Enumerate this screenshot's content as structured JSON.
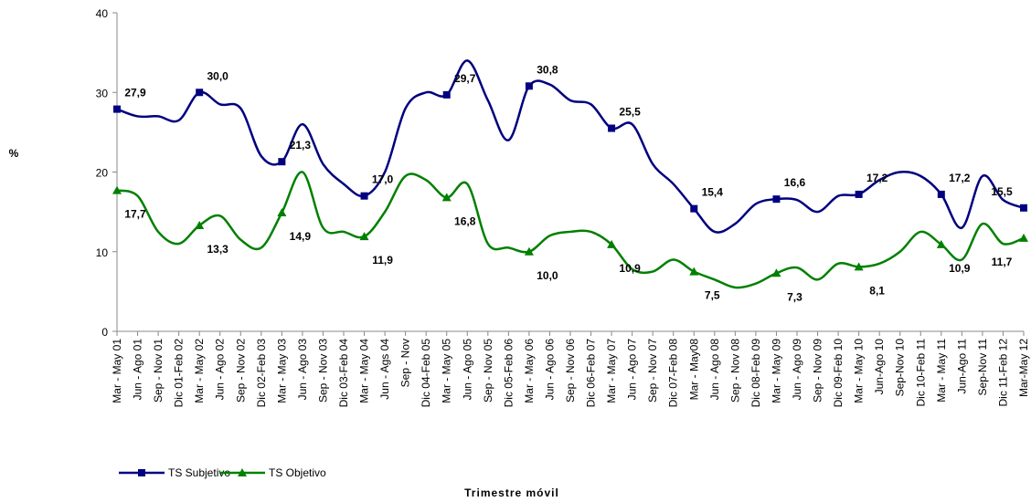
{
  "chart_data": {
    "type": "line",
    "y_label": "%",
    "x_label": "Trimestre móvil",
    "categories": [
      "Mar - May 01",
      "Jun - Ago 01",
      "Sep - Nov 01",
      "Dic 01-Feb 02",
      "Mar - May 02",
      "Jun - Ago 02",
      "Sep - Nov 02",
      "Dic 02-Feb 03",
      "Mar - May 03",
      "Jun - Ago 03",
      "Sep - Nov 03",
      "Dic 03-Feb 04",
      "Mar - May 04",
      "Jun - Ags 04",
      "Sep - Nov",
      "Dic 04-Feb 05",
      "Mar - May 05",
      "Jun - Ago 05",
      "Sep - Nov 05",
      "Dic 05-Feb 06",
      "Mar - May 06",
      "Jun - Ago 06",
      "Sep - Nov 06",
      "Dic 06-Feb 07",
      "Mar - May 07",
      "Jun - Ago 07",
      "Sep - Nov 07",
      "Dic 07-Feb 08",
      "Mar - May08",
      "Jun - Ago 08",
      "Sep - Nov 08",
      "Dic 08-Feb 09",
      "Mar - May 09",
      "Jun - Ago 09",
      "Sep - Nov 09",
      "Dic 09-Feb 10",
      "Mar - May 10",
      "Jun-Ago 10",
      "Sep-Nov 10",
      "Dic 10-Feb 11",
      "Mar - May 11",
      "Jun-Ago 11",
      "Sep-Nov 11",
      "Dic 11-Feb 12",
      "Mar-May 12"
    ],
    "series": [
      {
        "name": "TS Subjetivo",
        "color": "#000080",
        "marker": "square",
        "values": [
          27.9,
          27,
          27,
          26.5,
          30.0,
          28.5,
          28,
          22,
          21.3,
          26,
          21,
          18.5,
          17.0,
          20,
          28,
          30,
          29.7,
          34,
          29,
          24,
          30.8,
          31,
          29,
          28.5,
          25.5,
          26,
          21,
          18.5,
          15.4,
          12.5,
          13.5,
          16,
          16.6,
          16.5,
          15,
          17,
          17.2,
          19,
          20,
          19.5,
          17.2,
          13,
          19.5,
          16.5,
          15.5
        ],
        "value_labels": [
          "27,9",
          null,
          null,
          null,
          "30,0",
          null,
          null,
          null,
          "21,3",
          null,
          null,
          null,
          "17,0",
          null,
          null,
          null,
          "29,7",
          null,
          null,
          null,
          "30,8",
          null,
          null,
          null,
          "25,5",
          null,
          null,
          null,
          "15,4",
          null,
          null,
          null,
          "16,6",
          null,
          null,
          null,
          "17,2",
          null,
          null,
          null,
          "17,2",
          null,
          null,
          null,
          "15,5"
        ]
      },
      {
        "name": "TS Objetivo",
        "color": "#008000",
        "marker": "triangle",
        "values": [
          17.7,
          17,
          12.5,
          11,
          13.3,
          14.5,
          11.5,
          10.5,
          14.9,
          20,
          13,
          12.5,
          11.9,
          15,
          19.5,
          19,
          16.8,
          18.5,
          11,
          10.5,
          10.0,
          12,
          12.5,
          12.5,
          10.9,
          7.8,
          7.5,
          9,
          7.5,
          6.5,
          5.5,
          6,
          7.3,
          8,
          6.5,
          8.5,
          8.1,
          8.5,
          10,
          12.5,
          10.9,
          9,
          13.5,
          11,
          11.7
        ],
        "value_labels": [
          "17,7",
          null,
          null,
          null,
          "13,3",
          null,
          null,
          null,
          "14,9",
          null,
          null,
          null,
          "11,9",
          null,
          null,
          null,
          "16,8",
          null,
          null,
          null,
          "10,0",
          null,
          null,
          null,
          "10,9",
          null,
          null,
          null,
          "7,5",
          null,
          null,
          null,
          "7,3",
          null,
          null,
          null,
          "8,1",
          null,
          null,
          null,
          "10,9",
          null,
          null,
          null,
          "11,7"
        ]
      }
    ],
    "ylim": [
      0,
      40
    ],
    "yticks": [
      0,
      10,
      20,
      30,
      40
    ],
    "grid": false
  }
}
